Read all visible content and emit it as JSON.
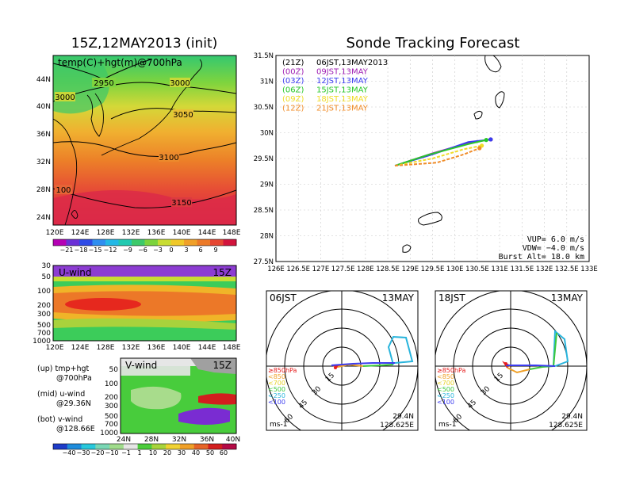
{
  "header": {
    "left_title": "15Z,12MAY2013 (init)",
    "right_title": "Sonde Tracking Forecast"
  },
  "map_panel": {
    "label": "temp(C)+hgt(m)@700hPa",
    "lat_labels": [
      "44N",
      "40N",
      "36N",
      "32N",
      "28N",
      "24N"
    ],
    "lon_labels": [
      "120E",
      "124E",
      "128E",
      "132E",
      "136E",
      "140E",
      "144E",
      "148E"
    ],
    "contour_labels": [
      "2950",
      "3000",
      "3000",
      "3050",
      "3100",
      "100",
      "3150"
    ],
    "colorbar_labels": [
      "−21",
      "−18",
      "−15",
      "−12",
      "−9",
      "−6",
      "−3",
      "0",
      "3",
      "6",
      "9"
    ],
    "colorbar_colors": [
      "#b400b4",
      "#6a2fd6",
      "#2e4be6",
      "#2f8ef0",
      "#23b8e6",
      "#21c9b0",
      "#3cc96a",
      "#7bd33c",
      "#c8dc32",
      "#f0c828",
      "#f0a028",
      "#ec7a28",
      "#e64632",
      "#d2143c"
    ]
  },
  "uwind_panel": {
    "label": "U-wind",
    "time": "15Z",
    "y_labels": [
      "30",
      "50",
      "100",
      "200",
      "300",
      "500",
      "700",
      "1000"
    ],
    "x_labels": [
      "120E",
      "124E",
      "128E",
      "132E",
      "136E",
      "140E",
      "144E",
      "148E"
    ]
  },
  "vwind_panel": {
    "label": "V-wind",
    "time": "15Z",
    "y_labels": [
      "50",
      "100",
      "200",
      "300",
      "500",
      "700",
      "1000"
    ],
    "x_labels": [
      "24N",
      "28N",
      "32N",
      "36N",
      "40N"
    ],
    "colorbar_labels": [
      "−40",
      "−30",
      "−20",
      "−10",
      "−1",
      "1",
      "10",
      "20",
      "30",
      "40",
      "50",
      "60"
    ],
    "colorbar_colors": [
      "#1e3cc8",
      "#1e8cdc",
      "#28c8dc",
      "#7ad7b4",
      "#a0dc8c",
      "#e6e6e6",
      "#4ccc3c",
      "#a8d43c",
      "#f0d232",
      "#f0a028",
      "#e66428",
      "#d21e1e",
      "#b40a46"
    ]
  },
  "legend_notes": [
    "(up) tmp+hgt",
    "@700hPa",
    "(mid) u-wind",
    "@29.36N",
    "(bot) v-wind",
    "@128.66E"
  ],
  "track_panel": {
    "lat_labels": [
      "31.5N",
      "31N",
      "30.5N",
      "30N",
      "29.5N",
      "29N",
      "28.5N",
      "28N",
      "27.5N"
    ],
    "lon_labels": [
      "126E",
      "126.5E",
      "127E",
      "127.5E",
      "128E",
      "128.5E",
      "129E",
      "129.5E",
      "130E",
      "130.5E",
      "131E",
      "131.5E",
      "132E",
      "132.5E",
      "133E"
    ],
    "legend": [
      {
        "zulu": "(21Z)",
        "local": "06JST,13MAY2013",
        "color": "#000000"
      },
      {
        "zulu": "(00Z)",
        "local": "09JST,13MAY",
        "color": "#a020b4"
      },
      {
        "zulu": "(03Z)",
        "local": "12JST,13MAY",
        "color": "#3c3cf0"
      },
      {
        "zulu": "(06Z)",
        "local": "15JST,13MAY",
        "color": "#28c828"
      },
      {
        "zulu": "(09Z)",
        "local": "18JST,13MAY",
        "color": "#f0dc28"
      },
      {
        "zulu": "(12Z)",
        "local": "21JST,13MAY",
        "color": "#f08c28"
      }
    ],
    "params": {
      "vup": "VUP= 6.0 m/s",
      "vdw": "VDW= −4.0 m/s",
      "burst": "Burst Alt= 18.0 km"
    }
  },
  "hodographs": [
    {
      "time": "06JST",
      "date": "13MAY",
      "ring_labels": [
        "15",
        "30",
        "45",
        "60"
      ],
      "pressure_legend": [
        "≥850hPa",
        "<850",
        "<700",
        "<500",
        "<250",
        "<100"
      ],
      "units": "ms-1",
      "lat": "29.4N",
      "lon": "128.625E"
    },
    {
      "time": "18JST",
      "date": "13MAY",
      "ring_labels": [
        "15",
        "30",
        "45",
        "60"
      ],
      "pressure_legend": [
        "≥850hPa",
        "<850",
        "<700",
        "<500",
        "<250",
        "<100"
      ],
      "units": "ms-1",
      "lat": "29.4N",
      "lon": "128.625E"
    }
  ],
  "pressure_legend_colors": [
    "#e61e1e",
    "#f0a028",
    "#e6d228",
    "#3cc83c",
    "#28b4dc",
    "#3c3cf0"
  ],
  "chart_data": [
    {
      "type": "heatmap",
      "title": "temp(C)+hgt(m)@700hPa",
      "x_range": [
        120,
        149
      ],
      "y_range": [
        22,
        47
      ],
      "xlabel": "",
      "ylabel": ""
    },
    {
      "type": "heatmap",
      "title": "U-wind",
      "x_range": [
        120,
        149
      ],
      "y_range": [
        1000,
        30
      ],
      "y_scale": "log",
      "xlabel": "",
      "ylabel": ""
    },
    {
      "type": "heatmap",
      "title": "V-wind",
      "x_range": [
        22,
        40
      ],
      "y_range": [
        1000,
        30
      ],
      "y_scale": "log",
      "xlabel": "",
      "ylabel": ""
    },
    {
      "type": "line",
      "title": "Sonde Tracking Forecast",
      "x_range": [
        126,
        133
      ],
      "y_range": [
        27.5,
        31.5
      ],
      "grid": true,
      "series": [
        {
          "name": "(21Z)",
          "points": [
            [
              130.8,
              29.87
            ]
          ]
        },
        {
          "name": "(00Z)",
          "points": [
            [
              128.66,
              29.36
            ],
            [
              129.5,
              29.6
            ],
            [
              130.3,
              29.8
            ],
            [
              130.8,
              29.87
            ]
          ]
        },
        {
          "name": "(03Z)",
          "points": [
            [
              128.66,
              29.36
            ],
            [
              129.5,
              29.58
            ],
            [
              130.3,
              29.82
            ],
            [
              130.8,
              29.87
            ]
          ]
        },
        {
          "name": "(06Z)",
          "points": [
            [
              128.66,
              29.36
            ],
            [
              129.4,
              29.57
            ],
            [
              130.3,
              29.78
            ],
            [
              130.7,
              29.86
            ]
          ]
        },
        {
          "name": "(09Z)",
          "points": [
            [
              128.66,
              29.36
            ],
            [
              129.5,
              29.5
            ],
            [
              130.2,
              29.68
            ],
            [
              130.6,
              29.75
            ]
          ]
        },
        {
          "name": "(12Z)",
          "points": [
            [
              128.66,
              29.36
            ],
            [
              129.6,
              29.42
            ],
            [
              130.2,
              29.58
            ],
            [
              130.55,
              29.7
            ]
          ]
        }
      ]
    }
  ]
}
